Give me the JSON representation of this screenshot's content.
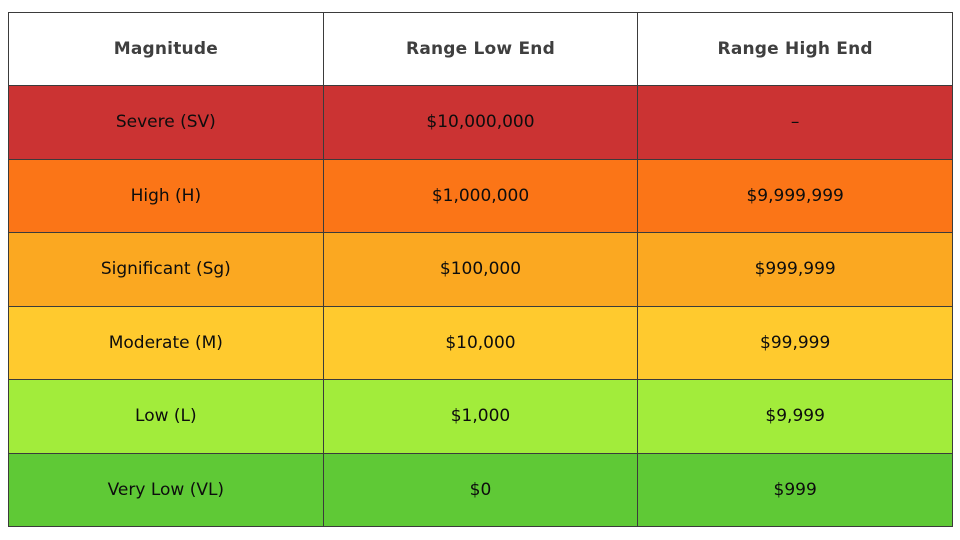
{
  "chart_data": {
    "type": "table",
    "title": "",
    "columns": [
      "Magnitude",
      "Range Low End",
      "Range High End"
    ],
    "rows": [
      [
        "Severe (SV)",
        "$10,000,000",
        "–"
      ],
      [
        "High (H)",
        "$1,000,000",
        "$9,999,999"
      ],
      [
        "Significant (Sg)",
        "$100,000",
        "$999,999"
      ],
      [
        "Moderate (M)",
        "$10,000",
        "$99,999"
      ],
      [
        "Low (L)",
        "$1,000",
        "$9,999"
      ],
      [
        "Very Low (VL)",
        "$0",
        "$999"
      ]
    ],
    "row_colors": [
      "#cb3333",
      "#fb7517",
      "#fba821",
      "#ffca2e",
      "#a2ec3b",
      "#5fc936"
    ],
    "colors": {
      "border": "#3b3b3b",
      "header_bg": "#ffffff",
      "header_text": "#3f3f3f",
      "cell_text": "#0d0d0d"
    },
    "layout": {
      "grid": "on",
      "column_alignment": "center",
      "equal_column_widths": true
    }
  }
}
